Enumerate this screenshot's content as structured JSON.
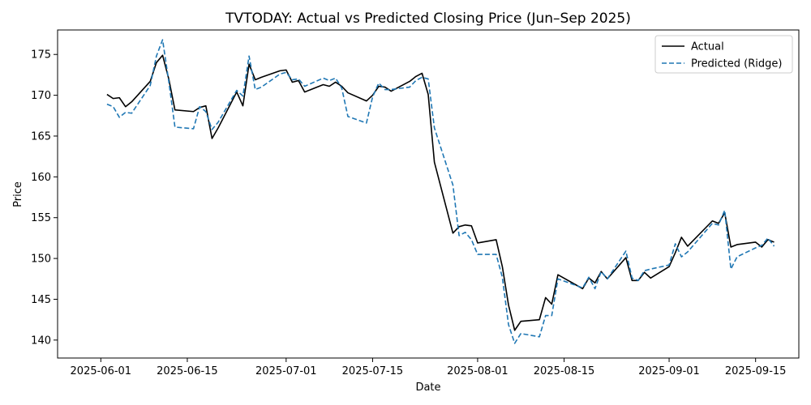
{
  "chart_data": {
    "type": "line",
    "title": "TVTODAY: Actual vs Predicted Closing Price (Jun–Sep 2025)",
    "xlabel": "Date",
    "ylabel": "Price",
    "xlim": [
      "2025-05-25",
      "2025-09-22"
    ],
    "ylim": [
      137.8,
      178.0
    ],
    "x_ticks": [
      "2025-06-01",
      "2025-06-15",
      "2025-07-01",
      "2025-07-15",
      "2025-08-01",
      "2025-08-15",
      "2025-09-01",
      "2025-09-15"
    ],
    "y_ticks": [
      140,
      145,
      150,
      155,
      160,
      165,
      170,
      175
    ],
    "grid": false,
    "legend": "top-right",
    "x": [
      "2025-06-02",
      "2025-06-03",
      "2025-06-04",
      "2025-06-05",
      "2025-06-06",
      "2025-06-09",
      "2025-06-10",
      "2025-06-11",
      "2025-06-12",
      "2025-06-13",
      "2025-06-16",
      "2025-06-17",
      "2025-06-18",
      "2025-06-19",
      "2025-06-20",
      "2025-06-23",
      "2025-06-24",
      "2025-06-25",
      "2025-06-26",
      "2025-06-27",
      "2025-06-30",
      "2025-07-01",
      "2025-07-02",
      "2025-07-03",
      "2025-07-04",
      "2025-07-07",
      "2025-07-08",
      "2025-07-09",
      "2025-07-10",
      "2025-07-11",
      "2025-07-14",
      "2025-07-15",
      "2025-07-16",
      "2025-07-17",
      "2025-07-18",
      "2025-07-21",
      "2025-07-22",
      "2025-07-23",
      "2025-07-24",
      "2025-07-25",
      "2025-07-28",
      "2025-07-29",
      "2025-07-30",
      "2025-07-31",
      "2025-08-01",
      "2025-08-04",
      "2025-08-05",
      "2025-08-06",
      "2025-08-07",
      "2025-08-08",
      "2025-08-11",
      "2025-08-12",
      "2025-08-13",
      "2025-08-14",
      "2025-08-18",
      "2025-08-19",
      "2025-08-20",
      "2025-08-21",
      "2025-08-22",
      "2025-08-25",
      "2025-08-26",
      "2025-08-27",
      "2025-08-28",
      "2025-08-29",
      "2025-09-01",
      "2025-09-02",
      "2025-09-03",
      "2025-09-04",
      "2025-09-08",
      "2025-09-09",
      "2025-09-10",
      "2025-09-11",
      "2025-09-12",
      "2025-09-15",
      "2025-09-16",
      "2025-09-17",
      "2025-09-18"
    ],
    "series": [
      {
        "name": "Actual",
        "color": "#000000",
        "dash": "solid",
        "values": [
          170.1,
          169.6,
          169.7,
          168.6,
          169.2,
          171.7,
          174.0,
          174.9,
          172.0,
          168.2,
          168.0,
          168.5,
          168.7,
          164.7,
          166.0,
          170.4,
          168.7,
          173.8,
          171.9,
          172.2,
          173.0,
          173.1,
          171.6,
          171.8,
          170.4,
          171.3,
          171.1,
          171.6,
          171.1,
          170.3,
          169.3,
          170.0,
          171.1,
          171.0,
          170.5,
          171.7,
          172.3,
          172.7,
          170.1,
          161.8,
          153.1,
          153.9,
          154.1,
          154.0,
          151.9,
          152.3,
          149.0,
          144.3,
          141.2,
          142.3,
          142.5,
          145.2,
          144.4,
          148.0,
          146.3,
          147.6,
          147.0,
          148.4,
          147.5,
          150.1,
          147.3,
          147.3,
          148.3,
          147.6,
          149.0,
          150.7,
          152.6,
          151.5,
          154.6,
          154.3,
          155.6,
          151.4,
          151.7,
          152.0,
          151.4,
          152.3,
          152.0
        ]
      },
      {
        "name": "Predicted (Ridge)",
        "color": "#1f77b4",
        "dash": "dashed",
        "values": [
          168.9,
          168.6,
          167.3,
          167.9,
          167.8,
          171.2,
          174.8,
          176.8,
          171.7,
          166.1,
          165.9,
          168.6,
          168.0,
          165.8,
          166.7,
          170.6,
          169.9,
          174.8,
          170.7,
          171.0,
          172.6,
          172.8,
          171.9,
          172.0,
          171.1,
          172.1,
          171.8,
          172.1,
          170.9,
          167.4,
          166.6,
          169.8,
          171.5,
          170.7,
          170.7,
          171.0,
          171.8,
          172.2,
          172.0,
          166.0,
          159.0,
          152.8,
          153.2,
          152.3,
          150.5,
          150.5,
          147.7,
          141.9,
          139.6,
          140.8,
          140.4,
          143.0,
          143.0,
          147.5,
          146.4,
          147.7,
          146.3,
          148.4,
          147.5,
          150.9,
          147.6,
          147.3,
          148.5,
          148.7,
          149.2,
          151.8,
          150.2,
          150.8,
          154.3,
          154.1,
          155.9,
          148.7,
          150.2,
          151.3,
          151.6,
          152.5,
          151.5
        ]
      }
    ]
  }
}
